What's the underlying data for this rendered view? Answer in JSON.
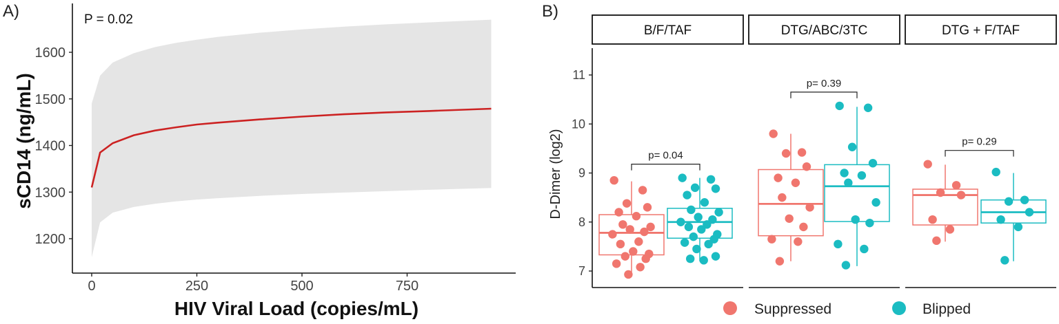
{
  "chart_data": [
    {
      "type": "line",
      "panel_label": "A)",
      "annotation": "P = 0.02",
      "xlabel": "HIV Viral Load (copies/mL)",
      "ylabel": "sCD14 (ng/mL)",
      "xlim": [
        -40,
        1000
      ],
      "ylim": [
        1120,
        1710
      ],
      "x_ticks": [
        0,
        250,
        500,
        750
      ],
      "x_tick_labels": [
        "0",
        "250",
        "500",
        "750"
      ],
      "y_ticks": [
        1200,
        1300,
        1400,
        1500,
        1600
      ],
      "y_tick_labels": [
        "1200",
        "1300",
        "1400",
        "1500",
        "1600"
      ],
      "colors": {
        "line": "#cc2222",
        "band": "#e5e5e5"
      },
      "series": [
        {
          "name": "fit",
          "x": [
            0,
            20,
            50,
            100,
            150,
            200,
            250,
            300,
            400,
            500,
            600,
            700,
            800,
            950
          ],
          "y": [
            1310,
            1385,
            1405,
            1422,
            1432,
            1439,
            1445,
            1449,
            1456,
            1462,
            1467,
            1471,
            1474,
            1479
          ]
        },
        {
          "name": "ci_upper",
          "x": [
            0,
            20,
            50,
            100,
            150,
            200,
            250,
            300,
            400,
            500,
            600,
            700,
            800,
            950
          ],
          "y": [
            1490,
            1550,
            1578,
            1598,
            1611,
            1620,
            1627,
            1633,
            1642,
            1649,
            1655,
            1660,
            1664,
            1670
          ]
        },
        {
          "name": "ci_lower",
          "x": [
            0,
            20,
            50,
            100,
            150,
            200,
            250,
            300,
            400,
            500,
            600,
            700,
            800,
            950
          ],
          "y": [
            1160,
            1235,
            1256,
            1268,
            1275,
            1280,
            1284,
            1287,
            1292,
            1296,
            1299,
            1302,
            1305,
            1309
          ]
        }
      ]
    },
    {
      "type": "box",
      "panel_label": "B)",
      "ylabel": "D-Dimer (log2)",
      "ylim": [
        6.8,
        11.5
      ],
      "y_ticks": [
        7,
        8,
        9,
        10,
        11
      ],
      "y_tick_labels": [
        "7",
        "8",
        "9",
        "10",
        "11"
      ],
      "colors": {
        "Suppressed": "#f0766e",
        "Blipped": "#1bbcc2"
      },
      "legend": [
        "Suppressed",
        "Blipped"
      ],
      "panels": [
        {
          "title": "B/F/TAF",
          "pvalue": "p= 0.04",
          "groups": [
            {
              "name": "Suppressed",
              "box": {
                "min": 6.9,
                "q1": 7.33,
                "median": 7.78,
                "q3": 8.15,
                "max": 8.83
              },
              "points": [
                8.85,
                8.65,
                8.38,
                8.3,
                8.2,
                8.12,
                7.95,
                7.9,
                7.85,
                7.8,
                7.75,
                7.6,
                7.55,
                7.4,
                7.35,
                7.3,
                7.25,
                7.15,
                7.08,
                6.93
              ]
            },
            {
              "name": "Blipped",
              "box": {
                "min": 7.2,
                "q1": 7.67,
                "median": 8.0,
                "q3": 8.28,
                "max": 8.9
              },
              "points": [
                8.9,
                8.87,
                8.7,
                8.68,
                8.55,
                8.4,
                8.25,
                8.2,
                8.1,
                8.05,
                8.0,
                7.95,
                7.9,
                7.85,
                7.75,
                7.7,
                7.65,
                7.58,
                7.55,
                7.45,
                7.3,
                7.25,
                7.22
              ]
            }
          ]
        },
        {
          "title": "DTG/ABC/3TC",
          "pvalue": "p= 0.39",
          "groups": [
            {
              "name": "Suppressed",
              "box": {
                "min": 7.2,
                "q1": 7.72,
                "median": 8.37,
                "q3": 9.07,
                "max": 9.8
              },
              "points": [
                9.8,
                9.42,
                9.4,
                9.13,
                8.9,
                8.8,
                8.5,
                8.3,
                8.07,
                7.9,
                7.65,
                7.6,
                7.2
              ]
            },
            {
              "name": "Blipped",
              "box": {
                "min": 7.1,
                "q1": 8.01,
                "median": 8.73,
                "q3": 9.17,
                "max": 10.35
              },
              "points": [
                10.37,
                10.33,
                9.53,
                9.2,
                9.0,
                8.95,
                8.8,
                8.4,
                8.05,
                7.98,
                7.55,
                7.45,
                7.12
              ]
            }
          ]
        },
        {
          "title": "DTG + F/TAF",
          "pvalue": "p= 0.29",
          "groups": [
            {
              "name": "Suppressed",
              "box": {
                "min": 7.6,
                "q1": 7.94,
                "median": 8.55,
                "q3": 8.67,
                "max": 9.17
              },
              "points": [
                9.18,
                8.75,
                8.6,
                8.55,
                8.05,
                7.85,
                7.62
              ]
            },
            {
              "name": "Blipped",
              "box": {
                "min": 7.2,
                "q1": 7.98,
                "median": 8.2,
                "q3": 8.45,
                "max": 9.0
              },
              "points": [
                9.02,
                8.45,
                8.42,
                8.2,
                8.05,
                7.9,
                7.22
              ]
            }
          ]
        }
      ]
    }
  ]
}
